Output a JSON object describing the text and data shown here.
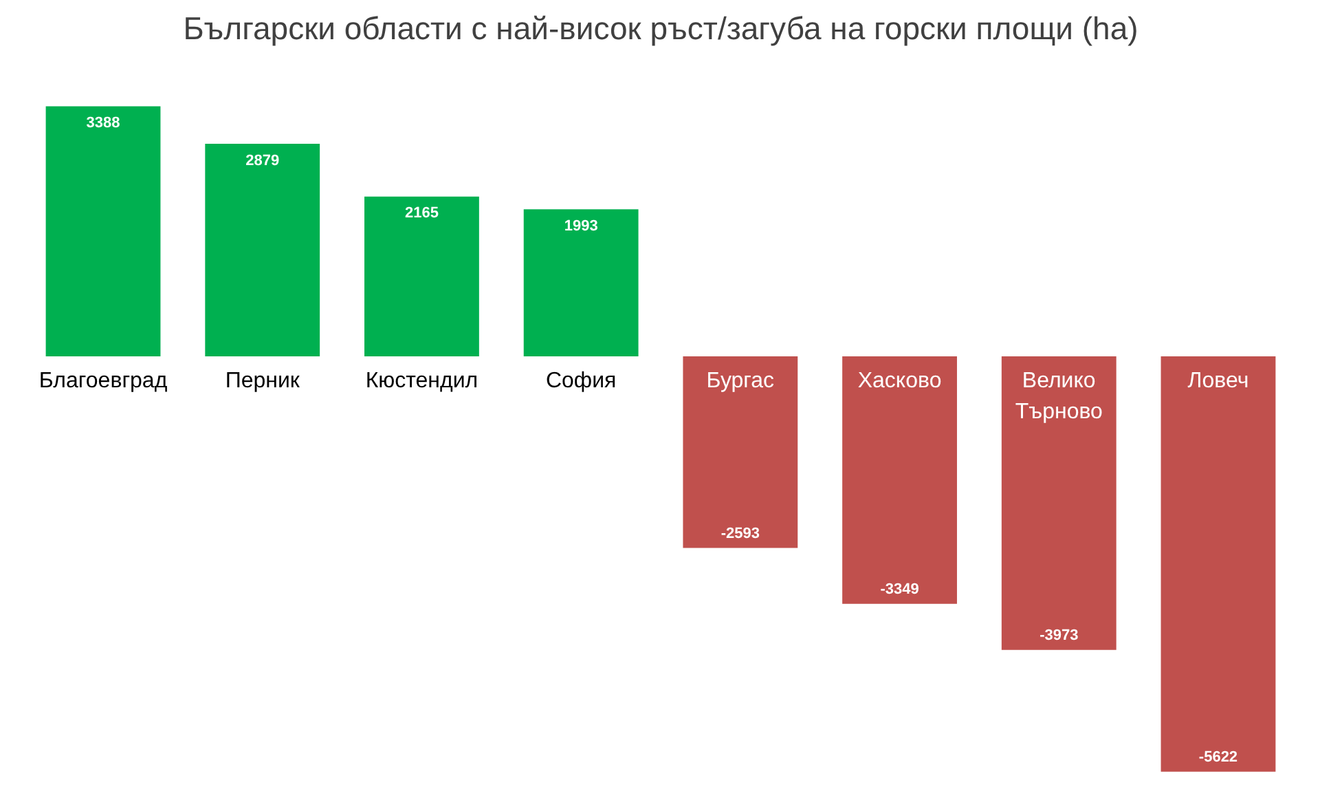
{
  "chart_data": {
    "type": "bar",
    "title": "Български области с най-висок ръст/загуба на горски площи (ha)",
    "categories": [
      "Благоевград",
      "Перник",
      "Кюстендил",
      "София",
      "Бургас",
      "Хасково",
      "Велико Търново",
      "Ловеч"
    ],
    "values": [
      3388,
      2879,
      2165,
      1993,
      -2593,
      -3349,
      -3973,
      -5622
    ],
    "colors": [
      "#00b050",
      "#00b050",
      "#00b050",
      "#00b050",
      "#c0504d",
      "#c0504d",
      "#c0504d",
      "#c0504d"
    ],
    "data_labels": true
  }
}
